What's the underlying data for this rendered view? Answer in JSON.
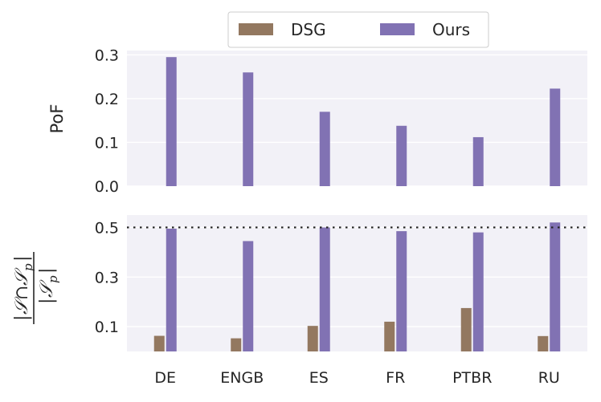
{
  "chart_data": [
    {
      "type": "bar",
      "categories": [
        "DE",
        "ENGB",
        "ES",
        "FR",
        "PTBR",
        "RU"
      ],
      "series": [
        {
          "name": "DSG",
          "values": [
            0,
            0,
            0,
            0,
            0,
            0
          ]
        },
        {
          "name": "Ours",
          "values": [
            0.295,
            0.26,
            0.17,
            0.138,
            0.112,
            0.223
          ]
        }
      ],
      "ylabel": "PoF",
      "ylim": [
        0,
        0.31
      ],
      "yticks": [
        "0.0",
        "0.1",
        "0.2",
        "0.3"
      ],
      "ytick_values": [
        0,
        0.1,
        0.2,
        0.3
      ],
      "grid": true,
      "legend_position": "top-center"
    },
    {
      "type": "bar",
      "categories": [
        "DE",
        "ENGB",
        "ES",
        "FR",
        "PTBR",
        "RU"
      ],
      "series": [
        {
          "name": "DSG",
          "values": [
            0.063,
            0.053,
            0.103,
            0.12,
            0.175,
            0.062
          ]
        },
        {
          "name": "Ours",
          "values": [
            0.495,
            0.445,
            0.5,
            0.485,
            0.48,
            0.52
          ]
        }
      ],
      "ylabel": "|S ∩ Sp| / |Sp|",
      "ylim": [
        0,
        0.55
      ],
      "yticks": [
        "0.1",
        "0.3",
        "0.5"
      ],
      "ytick_values": [
        0.1,
        0.3,
        0.5
      ],
      "reference_line": 0.5,
      "grid": true
    }
  ],
  "legend": {
    "items": [
      "DSG",
      "Ours"
    ]
  },
  "colors": {
    "dsg": "#937860",
    "ours": "#8172b3",
    "panel_bg": "#f2f1f7",
    "grid": "#ffffff"
  }
}
